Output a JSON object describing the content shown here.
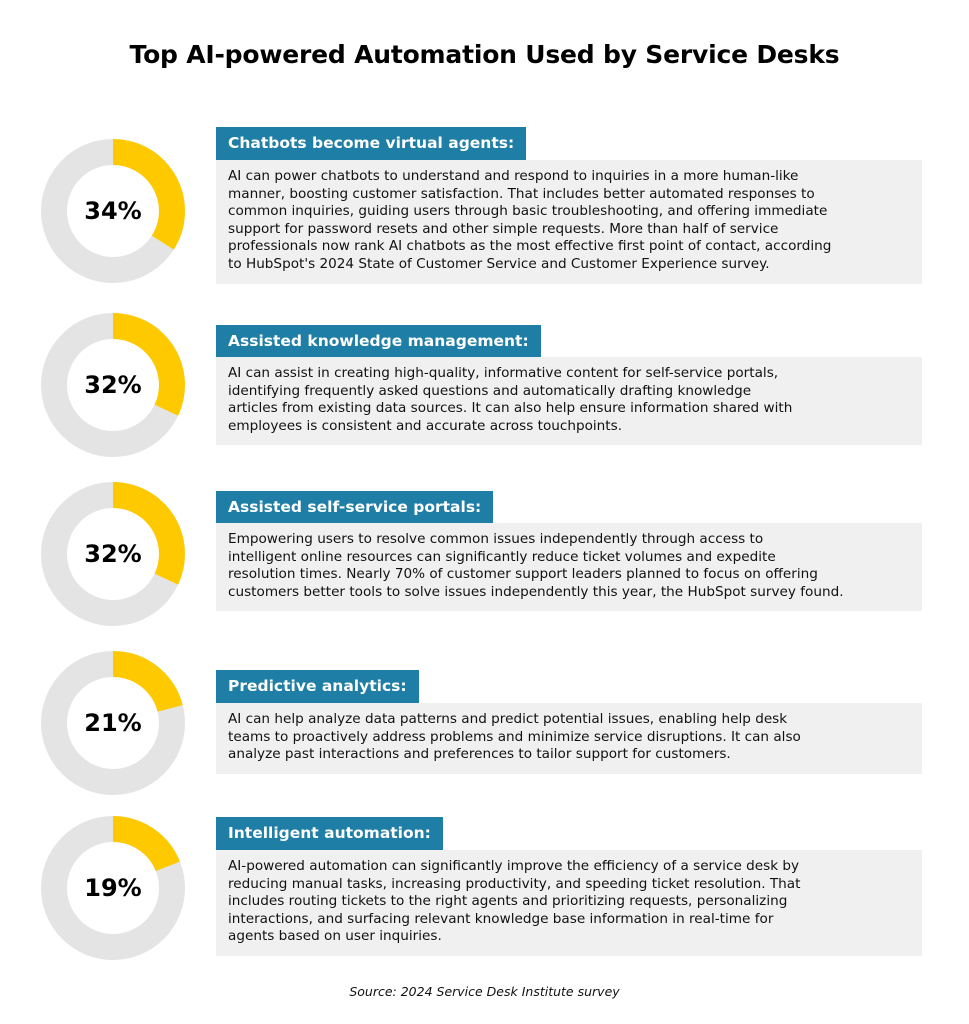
{
  "title": "Top AI-powered Automation Used by Service Desks",
  "source": "Source: 2024 Service Desk Institute survey",
  "colors": {
    "fill": "#ffc900",
    "track": "#e4e4e4",
    "heading_bg": "#1f7ea6",
    "desc_bg": "#f0f0f0"
  },
  "chart_data": {
    "type": "pie",
    "title": "Top AI-powered Automation Used by Service Desks",
    "categories": [
      "Chatbots become virtual agents:",
      "Assisted knowledge management:",
      "Assisted self-service portals:",
      "Predictive analytics:",
      "Intelligent automation:"
    ],
    "values": [
      34,
      32,
      32,
      21,
      19
    ],
    "unit": "%"
  },
  "items": [
    {
      "percent": 34,
      "percent_label": "34%",
      "heading": "Chatbots become virtual agents:",
      "lines": [
        "AI can power chatbots to understand and respond to inquiries in a more human-like",
        "manner, boosting customer satisfaction. That includes better automated responses to",
        "common inquiries, guiding users through basic troubleshooting, and offering immediate",
        "support for password resets and other simple requests. More than half of service",
        "professionals now rank AI chatbots as the most effective first point of contact, according",
        "to HubSpot's 2024 State of Customer Service and Customer Experience survey."
      ]
    },
    {
      "percent": 32,
      "percent_label": "32%",
      "heading": "Assisted knowledge management:",
      "lines": [
        "AI can assist in creating high-quality, informative content for self-service portals,",
        "identifying frequently asked questions and automatically drafting knowledge",
        "articles from existing data sources. It can also help ensure information shared with",
        "employees is consistent and accurate across touchpoints."
      ]
    },
    {
      "percent": 32,
      "percent_label": "32%",
      "heading": "Assisted self-service portals:",
      "lines": [
        "Empowering users to resolve common issues independently through access to",
        "intelligent online resources can significantly reduce ticket volumes and expedite",
        "resolution times. Nearly 70% of customer support leaders planned to focus on offering",
        "customers better tools to solve issues independently this year, the HubSpot survey found."
      ]
    },
    {
      "percent": 21,
      "percent_label": "21%",
      "heading": "Predictive analytics:",
      "lines": [
        "AI can help analyze data patterns and predict potential issues, enabling help desk",
        "teams to proactively address problems and minimize service disruptions. It can also",
        "analyze past interactions and preferences to tailor support for customers."
      ]
    },
    {
      "percent": 19,
      "percent_label": "19%",
      "heading": "Intelligent automation:",
      "lines": [
        "AI-powered automation can significantly improve the efficiency of a service desk by",
        "reducing manual tasks, increasing productivity, and speeding ticket resolution. That",
        "includes routing tickets to the right agents and prioritizing requests, personalizing",
        "interactions, and surfacing relevant knowledge base information in real-time for",
        "agents based on user inquiries."
      ]
    }
  ]
}
